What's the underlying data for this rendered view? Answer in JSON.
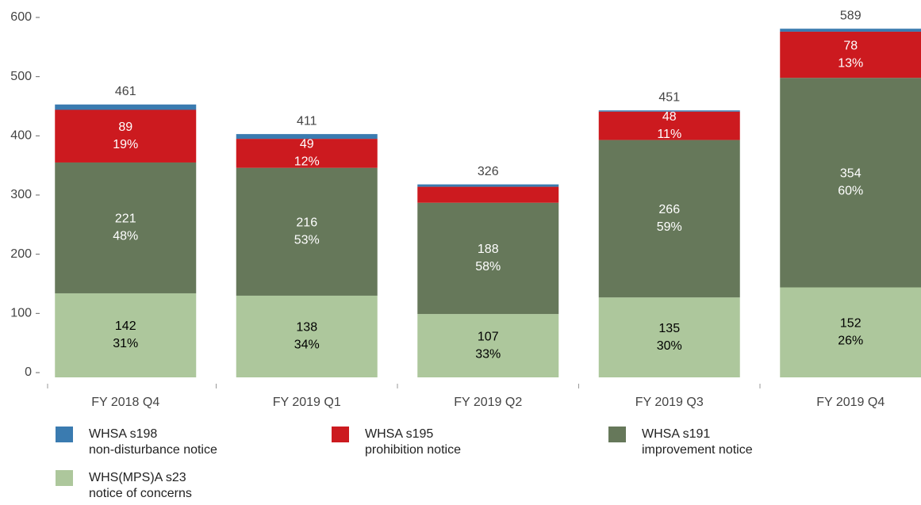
{
  "chart_data": {
    "type": "stacked_bar",
    "categories": [
      "FY 2018 Q4",
      "FY 2019 Q1",
      "FY 2019 Q2",
      "FY 2019 Q3",
      "FY 2019 Q4"
    ],
    "series": [
      {
        "name": "WHS(MPS)A s23\nnotice of concerns",
        "color": "#adc79c",
        "text_color": "#000000",
        "values": [
          142,
          138,
          107,
          135,
          152
        ],
        "percent_labels": [
          "31%",
          "34%",
          "33%",
          "30%",
          "26%"
        ]
      },
      {
        "name": "WHSA s191\nimprovement notice",
        "color": "#66785a",
        "text_color": "#ffffff",
        "values": [
          221,
          216,
          188,
          266,
          354
        ],
        "percent_labels": [
          "48%",
          "53%",
          "58%",
          "59%",
          "60%"
        ]
      },
      {
        "name": "WHSA s195\nprohibition notice",
        "color": "#cc1a1f",
        "text_color": "#ffffff",
        "values": [
          89,
          49,
          27,
          48,
          78
        ],
        "value_labels": [
          "89",
          "49",
          null,
          "48",
          "78"
        ],
        "percent_labels": [
          "19%",
          "12%",
          null,
          "11%",
          "13%"
        ]
      },
      {
        "name": "WHSA s198\nnon-disturbance notice",
        "color": "#3a7bb0",
        "values": [
          9,
          8,
          4,
          2,
          5
        ]
      }
    ],
    "totals": [
      461,
      411,
      326,
      451,
      589
    ],
    "ylim": [
      0,
      600
    ],
    "yticks": [
      0,
      100,
      200,
      300,
      400,
      500,
      600
    ]
  }
}
